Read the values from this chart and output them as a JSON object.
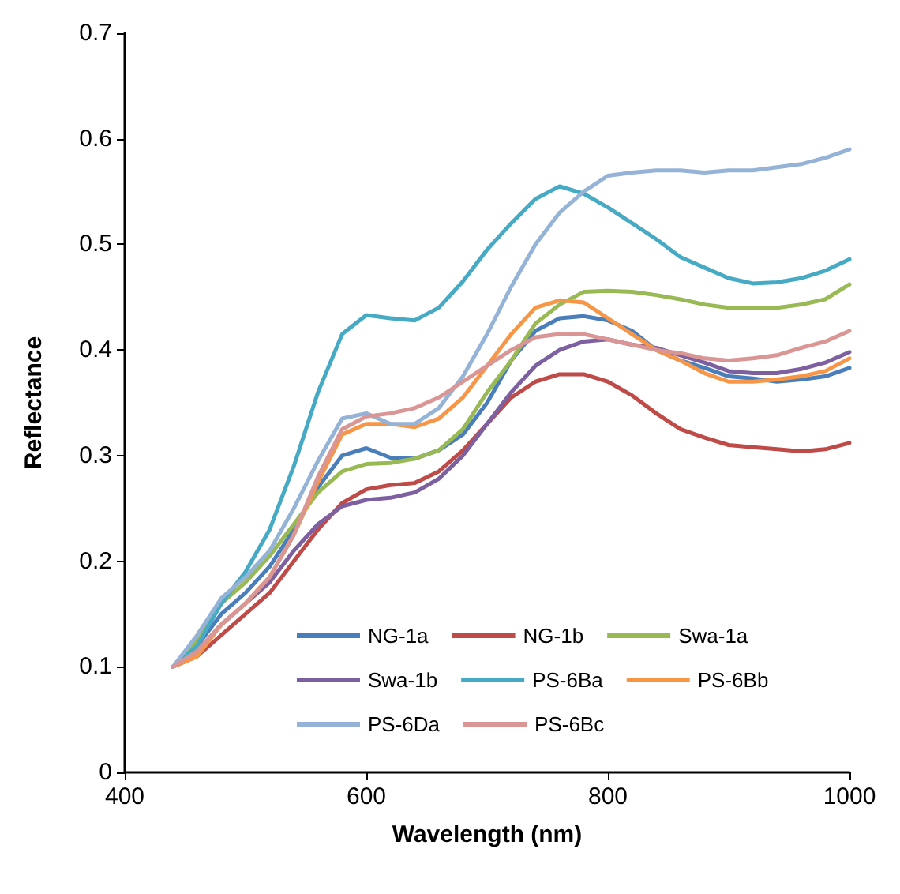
{
  "chart_data": {
    "type": "line",
    "xlabel": "Wavelength (nm)",
    "ylabel": "Reflectance",
    "x": [
      440,
      460,
      480,
      500,
      520,
      540,
      560,
      580,
      600,
      620,
      640,
      660,
      680,
      700,
      720,
      740,
      760,
      780,
      800,
      820,
      840,
      860,
      880,
      900,
      920,
      940,
      960,
      980,
      1000
    ],
    "xlim": [
      400,
      1000
    ],
    "xticks": [
      400,
      600,
      800,
      1000
    ],
    "ylim": [
      0,
      0.7
    ],
    "yticks": [
      0,
      0.1,
      0.2,
      0.3,
      0.4,
      0.5,
      0.6,
      0.7
    ],
    "grid": false,
    "legend": "bottom",
    "marker": "none",
    "line_style": "solid",
    "series": [
      {
        "name": "NG-1a",
        "color": "#4a7ebb",
        "values": [
          0.1,
          0.12,
          0.15,
          0.17,
          0.195,
          0.23,
          0.27,
          0.3,
          0.307,
          0.298,
          0.297,
          0.305,
          0.32,
          0.35,
          0.39,
          0.418,
          0.43,
          0.432,
          0.428,
          0.418,
          0.4,
          0.39,
          0.383,
          0.375,
          0.373,
          0.37,
          0.372,
          0.375,
          0.383
        ]
      },
      {
        "name": "NG-1b",
        "color": "#be4b48",
        "values": [
          0.1,
          0.11,
          0.13,
          0.15,
          0.17,
          0.2,
          0.23,
          0.255,
          0.268,
          0.272,
          0.274,
          0.285,
          0.305,
          0.33,
          0.355,
          0.37,
          0.377,
          0.377,
          0.37,
          0.357,
          0.34,
          0.325,
          0.317,
          0.31,
          0.308,
          0.306,
          0.304,
          0.306,
          0.312
        ]
      },
      {
        "name": "Swa-1a",
        "color": "#98b954",
        "values": [
          0.1,
          0.125,
          0.16,
          0.18,
          0.205,
          0.235,
          0.265,
          0.285,
          0.292,
          0.293,
          0.297,
          0.305,
          0.325,
          0.36,
          0.39,
          0.425,
          0.443,
          0.455,
          0.456,
          0.455,
          0.452,
          0.448,
          0.443,
          0.44,
          0.44,
          0.44,
          0.443,
          0.448,
          0.462
        ]
      },
      {
        "name": "Swa-1b",
        "color": "#7d60a0",
        "values": [
          0.1,
          0.115,
          0.14,
          0.16,
          0.18,
          0.21,
          0.235,
          0.252,
          0.258,
          0.26,
          0.265,
          0.278,
          0.3,
          0.33,
          0.36,
          0.385,
          0.4,
          0.408,
          0.41,
          0.405,
          0.402,
          0.395,
          0.388,
          0.38,
          0.378,
          0.378,
          0.382,
          0.388,
          0.398
        ]
      },
      {
        "name": "PS-6Ba",
        "color": "#46aac5",
        "values": [
          0.1,
          0.12,
          0.16,
          0.19,
          0.23,
          0.29,
          0.36,
          0.415,
          0.433,
          0.43,
          0.428,
          0.44,
          0.465,
          0.495,
          0.52,
          0.543,
          0.555,
          0.548,
          0.535,
          0.52,
          0.505,
          0.488,
          0.478,
          0.468,
          0.463,
          0.464,
          0.468,
          0.475,
          0.486
        ]
      },
      {
        "name": "PS-6Bb",
        "color": "#f79646",
        "values": [
          0.1,
          0.11,
          0.14,
          0.16,
          0.185,
          0.225,
          0.275,
          0.32,
          0.33,
          0.33,
          0.327,
          0.335,
          0.355,
          0.385,
          0.415,
          0.44,
          0.447,
          0.445,
          0.43,
          0.415,
          0.4,
          0.39,
          0.378,
          0.37,
          0.37,
          0.372,
          0.375,
          0.38,
          0.392
        ]
      },
      {
        "name": "PS-6Da",
        "color": "#95b3d7",
        "values": [
          0.1,
          0.13,
          0.165,
          0.185,
          0.21,
          0.25,
          0.295,
          0.335,
          0.34,
          0.33,
          0.33,
          0.345,
          0.375,
          0.415,
          0.46,
          0.5,
          0.53,
          0.55,
          0.565,
          0.568,
          0.57,
          0.57,
          0.568,
          0.57,
          0.57,
          0.573,
          0.576,
          0.582,
          0.59
        ]
      },
      {
        "name": "PS-6Bc",
        "color": "#d99694",
        "values": [
          0.1,
          0.115,
          0.14,
          0.16,
          0.185,
          0.225,
          0.28,
          0.325,
          0.337,
          0.34,
          0.345,
          0.355,
          0.37,
          0.385,
          0.4,
          0.412,
          0.415,
          0.415,
          0.41,
          0.405,
          0.4,
          0.397,
          0.392,
          0.39,
          0.392,
          0.395,
          0.402,
          0.408,
          0.418
        ]
      }
    ]
  }
}
